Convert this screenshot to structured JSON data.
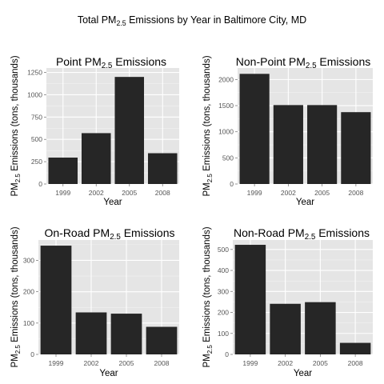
{
  "figure": {
    "title": "Total PM2.5 Emissions by Year in Baltimore City, MD",
    "title_parts": [
      "Total PM",
      "2.5",
      " Emissions by Year in Baltimore City, MD"
    ]
  },
  "colors": {
    "bar": "#262626",
    "panel_bg": "#e5e5e5",
    "grid_major": "#ffffff",
    "grid_minor": "#f2f2f2"
  },
  "chart_data": [
    {
      "type": "bar",
      "title": "Point PM2.5 Emissions",
      "title_parts": [
        "Point PM",
        "2.5",
        " Emissions"
      ],
      "xlabel": "Year",
      "ylabel": "PM2.5 Emissions (tons, thousands)",
      "ylabel_parts": [
        "PM",
        "2.5",
        " Emissions (tons, thousands)"
      ],
      "categories": [
        "1999",
        "2002",
        "2005",
        "2008"
      ],
      "values": [
        296,
        570,
        1200,
        345
      ],
      "ylim": [
        0,
        1300
      ],
      "yticks": [
        0,
        250,
        500,
        750,
        1000,
        1250
      ],
      "grid": true
    },
    {
      "type": "bar",
      "title": "Non-Point PM2.5 Emissions",
      "title_parts": [
        "Non-Point PM",
        "2.5",
        " Emissions"
      ],
      "xlabel": "Year",
      "ylabel": "PM2.5 Emissions (tons, thousands)",
      "ylabel_parts": [
        "PM",
        "2.5",
        " Emissions (tons, thousands)"
      ],
      "categories": [
        "1999",
        "2002",
        "2005",
        "2008"
      ],
      "values": [
        2108,
        1510,
        1510,
        1375
      ],
      "ylim": [
        0,
        2220
      ],
      "yticks": [
        0,
        500,
        1000,
        1500,
        2000
      ],
      "grid": true
    },
    {
      "type": "bar",
      "title": "On-Road PM2.5 Emissions",
      "title_parts": [
        "On-Road PM",
        "2.5",
        " Emissions"
      ],
      "xlabel": "Year",
      "ylabel": "PM2.5 Emissions (tons, thousands)",
      "ylabel_parts": [
        "PM",
        "2.5",
        " Emissions (tons, thousands)"
      ],
      "categories": [
        "1999",
        "2002",
        "2005",
        "2008"
      ],
      "values": [
        347,
        134,
        130,
        88
      ],
      "ylim": [
        0,
        365
      ],
      "yticks": [
        0,
        100,
        200,
        300
      ],
      "grid": true
    },
    {
      "type": "bar",
      "title": "Non-Road PM2.5 Emissions",
      "title_parts": [
        "Non-Road PM",
        "2.5",
        " Emissions"
      ],
      "xlabel": "Year",
      "ylabel": "PM2.5 Emissions (tons, thousands)",
      "ylabel_parts": [
        "PM",
        "2.5",
        " Emissions (tons, thousands)"
      ],
      "categories": [
        "1999",
        "2002",
        "2005",
        "2008"
      ],
      "values": [
        522,
        241,
        249,
        55
      ],
      "ylim": [
        0,
        545
      ],
      "yticks": [
        0,
        100,
        200,
        300,
        400,
        500
      ],
      "grid": true
    }
  ]
}
